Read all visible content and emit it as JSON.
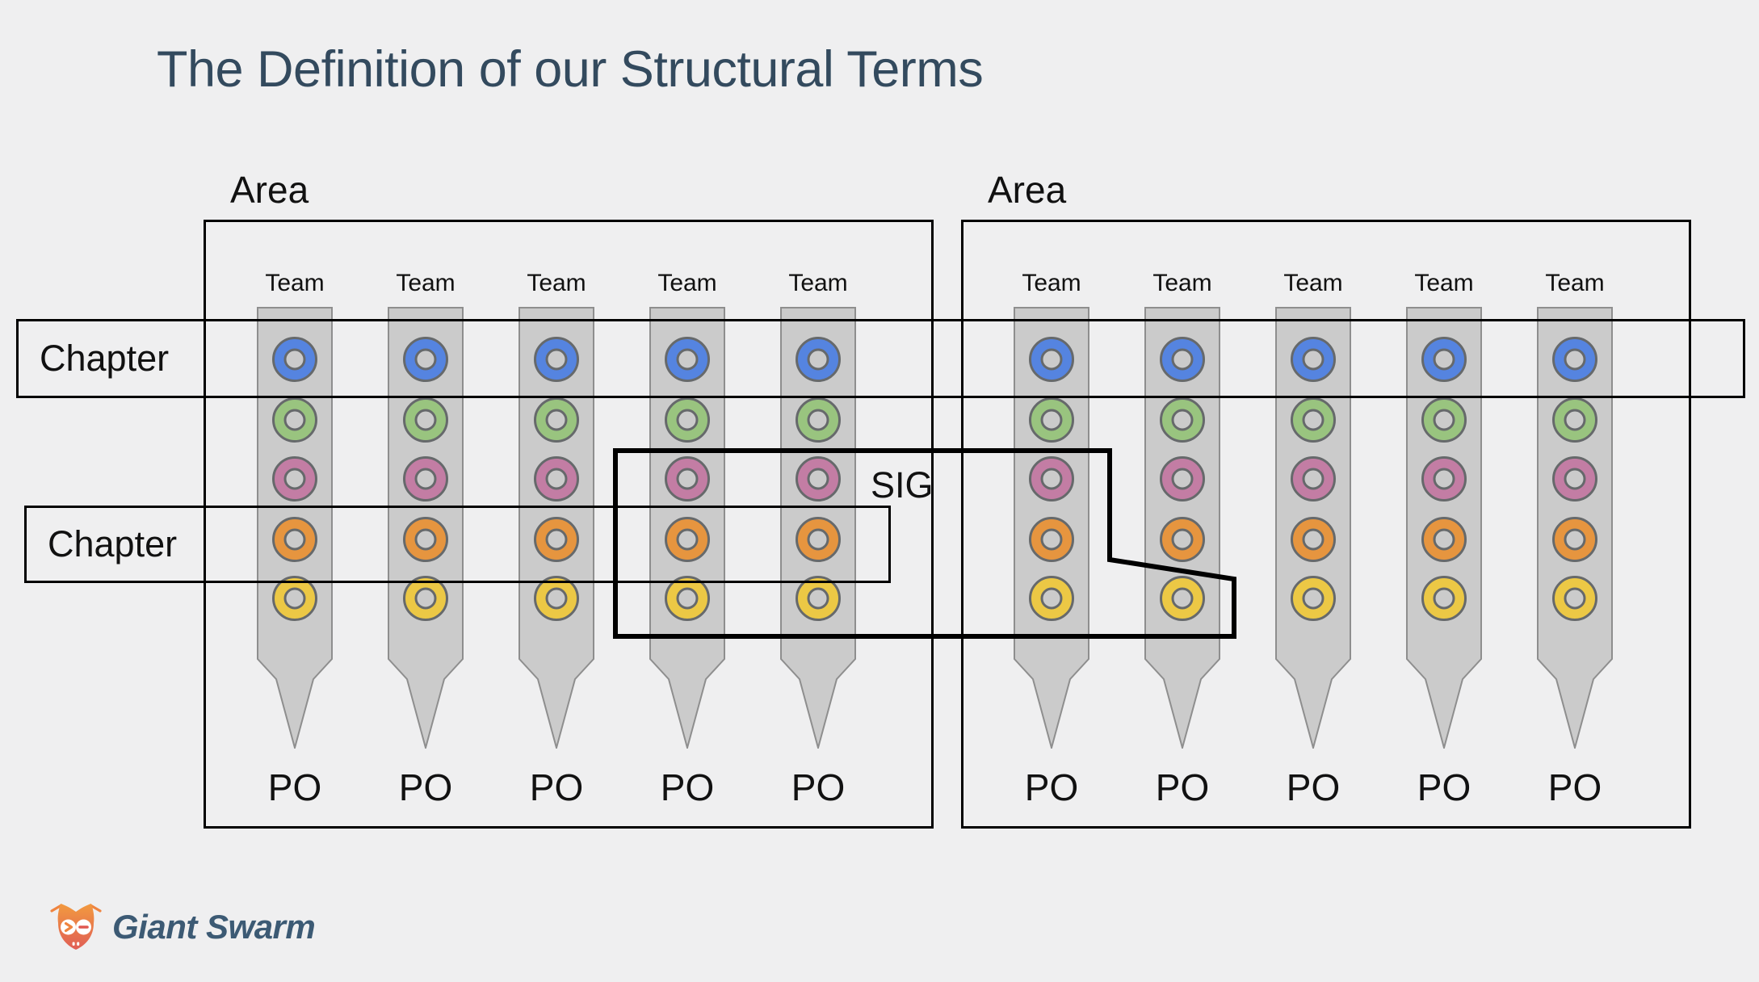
{
  "title": "The Definition of our Structural Terms",
  "areas": [
    {
      "label": "Area",
      "teams": [
        {
          "label": "Team",
          "po": "PO"
        },
        {
          "label": "Team",
          "po": "PO"
        },
        {
          "label": "Team",
          "po": "PO"
        },
        {
          "label": "Team",
          "po": "PO"
        },
        {
          "label": "Team",
          "po": "PO"
        }
      ]
    },
    {
      "label": "Area",
      "teams": [
        {
          "label": "Team",
          "po": "PO"
        },
        {
          "label": "Team",
          "po": "PO"
        },
        {
          "label": "Team",
          "po": "PO"
        },
        {
          "label": "Team",
          "po": "PO"
        },
        {
          "label": "Team",
          "po": "PO"
        }
      ]
    }
  ],
  "roles": [
    {
      "name": "blue",
      "color": "#5584e0"
    },
    {
      "name": "green",
      "color": "#99c47f"
    },
    {
      "name": "pink",
      "color": "#c37da4"
    },
    {
      "name": "orange",
      "color": "#e6953f"
    },
    {
      "name": "yellow",
      "color": "#ecc845"
    }
  ],
  "chapters": [
    {
      "label": "Chapter"
    },
    {
      "label": "Chapter"
    }
  ],
  "sig": {
    "label": "SIG"
  },
  "logo": {
    "text": "Giant Swarm"
  },
  "colors": {
    "background": "#efeff0",
    "title": "#334a5e",
    "outline": "#000000",
    "column_fill": "#cbcbcb",
    "column_stroke": "#8e8e8e",
    "ring_stroke": "#66696b",
    "hole_fill": "#cbcbcb",
    "logo_text": "#3c5a74",
    "logo_gradient_top": "#f29a3f",
    "logo_gradient_bottom": "#e05e56"
  }
}
